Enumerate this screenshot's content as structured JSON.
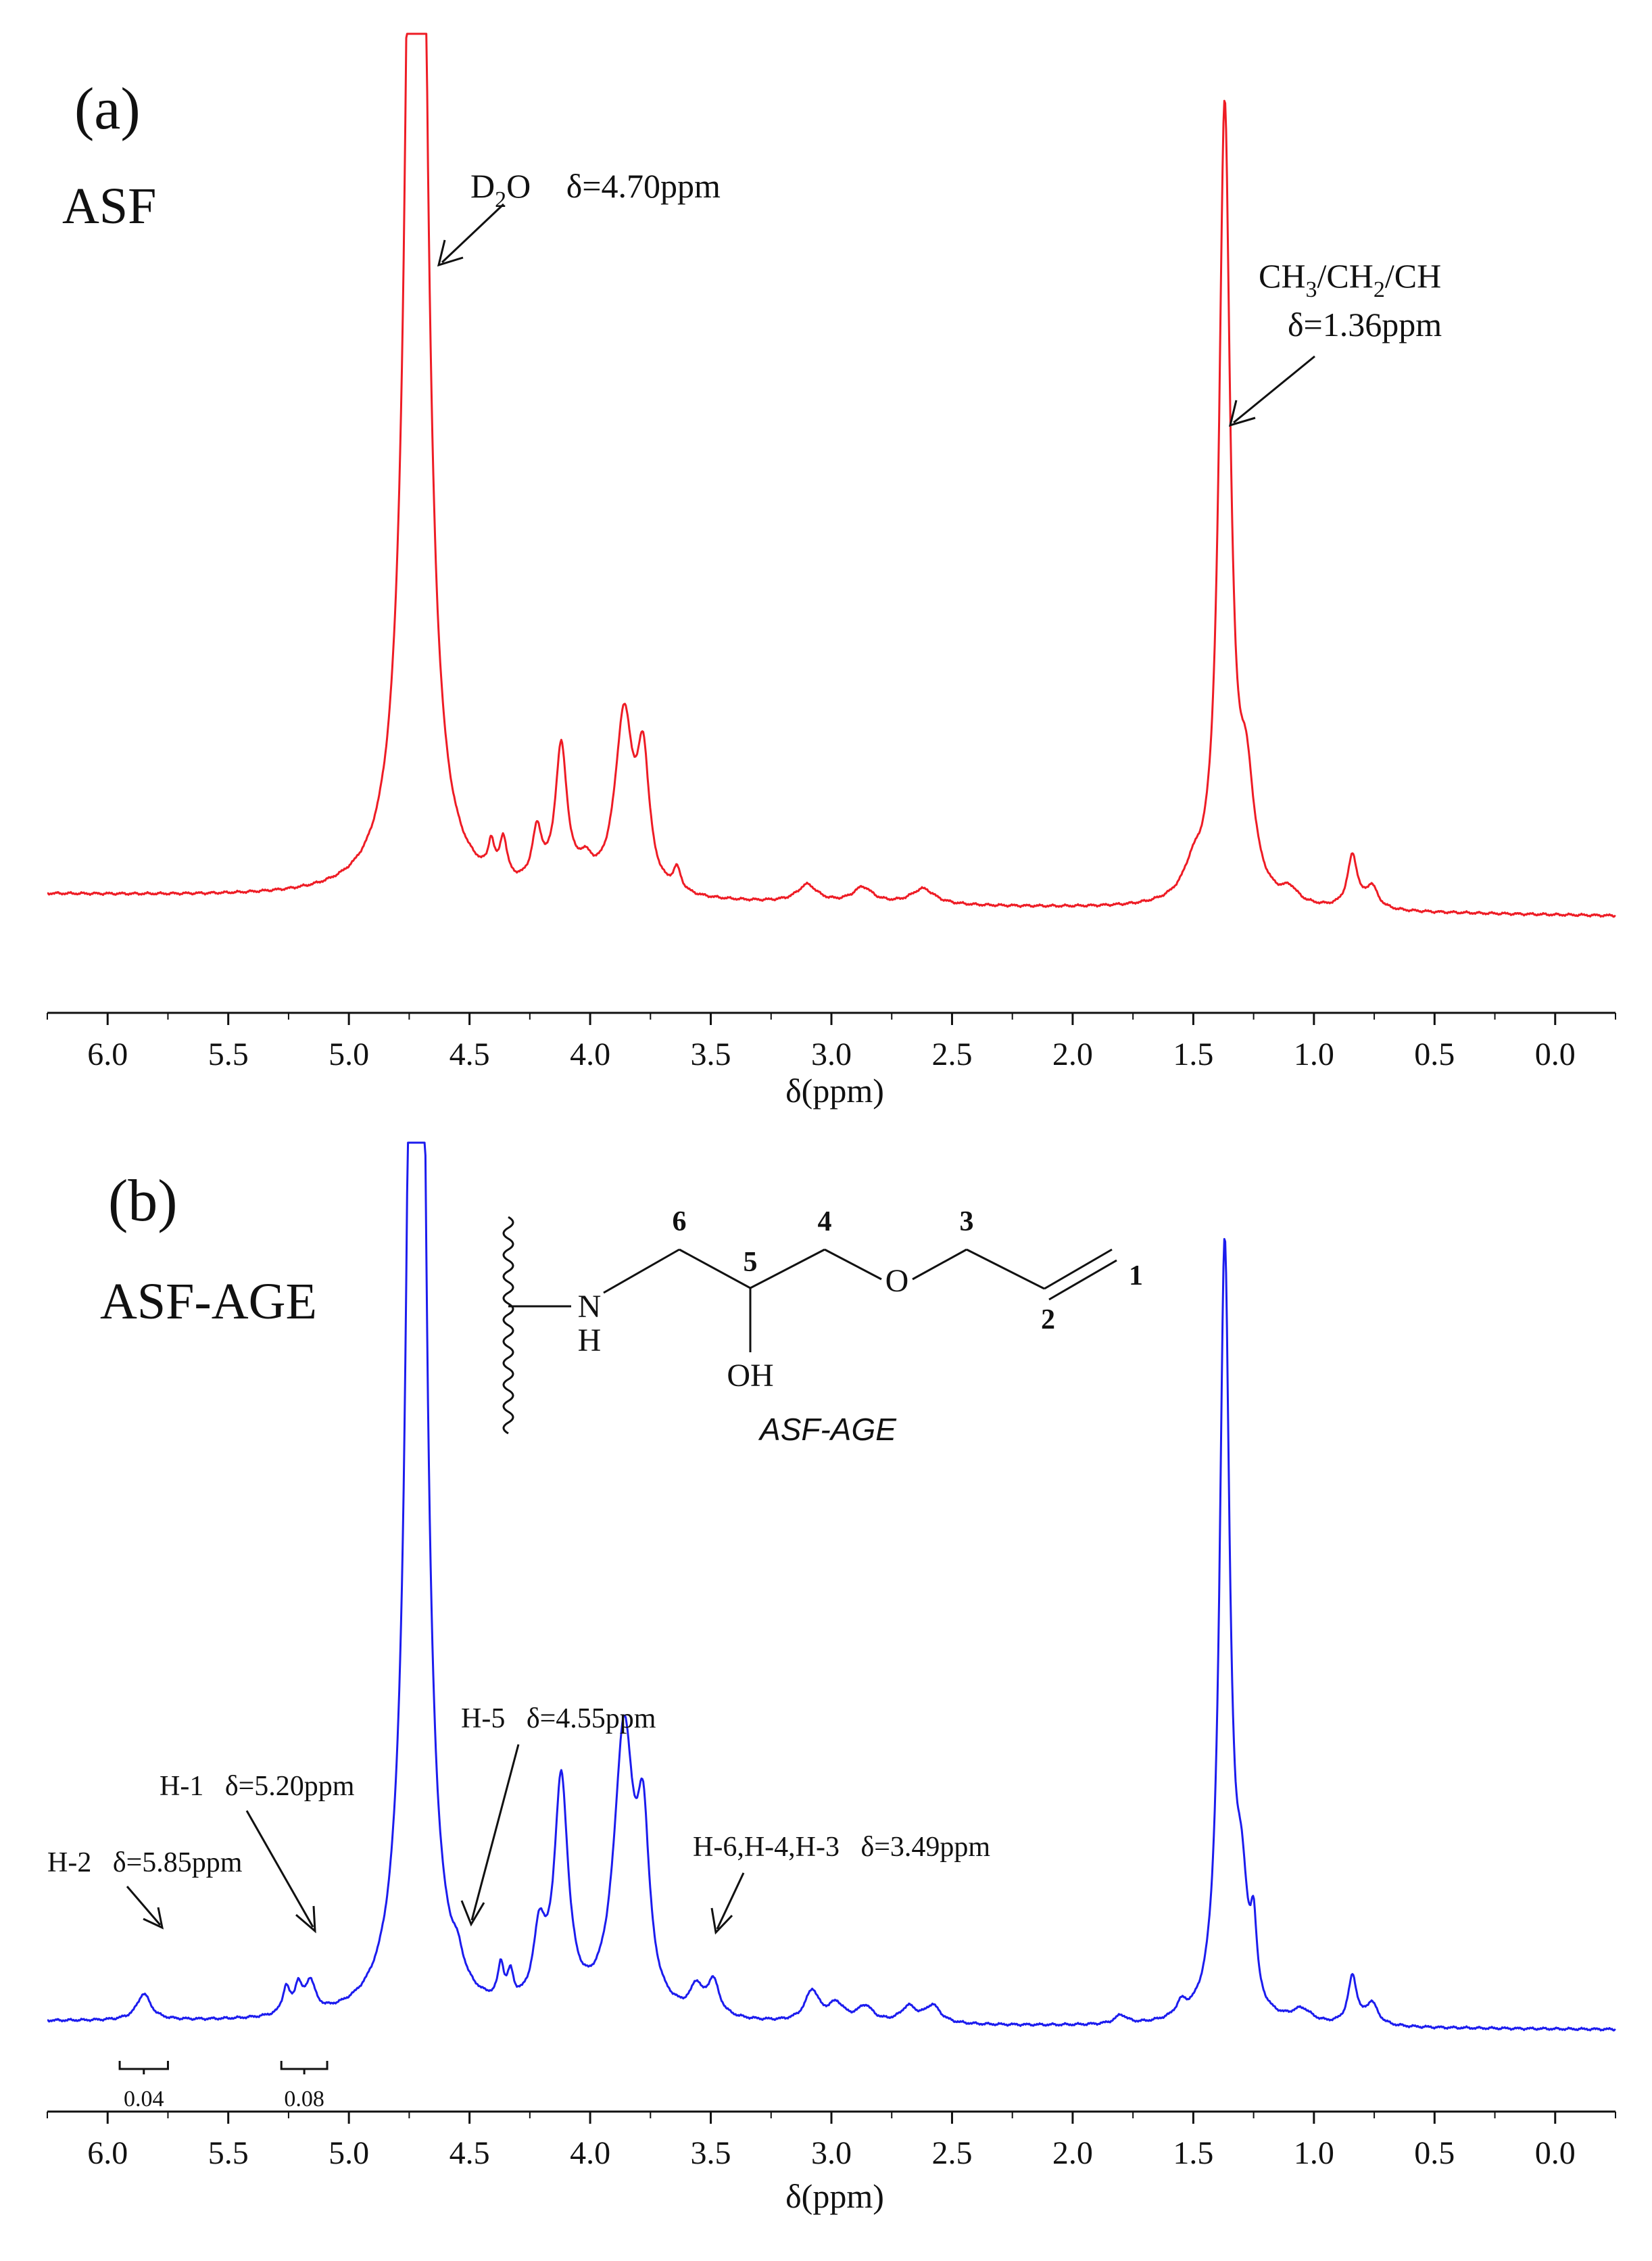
{
  "chart_data": [
    {
      "type": "line",
      "panel_label": "(a)",
      "sample_label": "ASF",
      "xlabel": "δ(ppm)",
      "xlim": [
        6.25,
        -0.25
      ],
      "ylim": [
        0,
        1
      ],
      "xticks": [
        6.0,
        5.5,
        5.0,
        4.5,
        4.0,
        3.5,
        3.0,
        2.5,
        2.0,
        1.5,
        1.0,
        0.5,
        0.0
      ],
      "xtick_labels": [
        "6.0",
        "5.5",
        "5.0",
        "4.5",
        "4.0",
        "3.5",
        "3.0",
        "2.5",
        "2.0",
        "1.5",
        "1.0",
        "0.5",
        "0.0"
      ],
      "color": "#ee1c25",
      "baseline": 0.03,
      "peaks": [
        {
          "x": 4.72,
          "h": 2.4,
          "w": 0.035
        },
        {
          "x": 4.12,
          "h": 0.16,
          "w": 0.03
        },
        {
          "x": 4.02,
          "h": 0.025,
          "w": 0.04
        },
        {
          "x": 4.22,
          "h": 0.06,
          "w": 0.025
        },
        {
          "x": 4.36,
          "h": 0.045,
          "w": 0.018
        },
        {
          "x": 4.41,
          "h": 0.035,
          "w": 0.015
        },
        {
          "x": 3.86,
          "h": 0.2,
          "w": 0.045
        },
        {
          "x": 3.78,
          "h": 0.14,
          "w": 0.03
        },
        {
          "x": 3.64,
          "h": 0.025,
          "w": 0.02
        },
        {
          "x": 3.1,
          "h": 0.02,
          "w": 0.05
        },
        {
          "x": 2.87,
          "h": 0.018,
          "w": 0.05
        },
        {
          "x": 2.62,
          "h": 0.018,
          "w": 0.06
        },
        {
          "x": 1.5,
          "h": 0.03,
          "w": 0.05
        },
        {
          "x": 1.37,
          "h": 0.9,
          "w": 0.028
        },
        {
          "x": 1.28,
          "h": 0.12,
          "w": 0.04
        },
        {
          "x": 1.1,
          "h": 0.015,
          "w": 0.04
        },
        {
          "x": 0.84,
          "h": 0.06,
          "w": 0.025
        },
        {
          "x": 0.76,
          "h": 0.025,
          "w": 0.03
        }
      ],
      "annotations": [
        {
          "label": "D₂O   δ=4.70ppm",
          "x": 4.7
        },
        {
          "label_line1": "CH₃/CH₂/CH",
          "label_line2": "δ=1.36ppm",
          "x": 1.36
        }
      ]
    },
    {
      "type": "line",
      "panel_label": "(b)",
      "sample_label": "ASF-AGE",
      "xlabel": "δ(ppm)",
      "xlim": [
        6.25,
        -0.25
      ],
      "ylim": [
        0,
        1
      ],
      "xticks": [
        6.0,
        5.5,
        5.0,
        4.5,
        4.0,
        3.5,
        3.0,
        2.5,
        2.0,
        1.5,
        1.0,
        0.5,
        0.0
      ],
      "xtick_labels": [
        "6.0",
        "5.5",
        "5.0",
        "4.5",
        "4.0",
        "3.5",
        "3.0",
        "2.5",
        "2.0",
        "1.5",
        "1.0",
        "0.5",
        "0.0"
      ],
      "color": "#1c1cee",
      "baseline": 0.03,
      "peaks": [
        {
          "x": 5.85,
          "h": 0.03,
          "w": 0.035
        },
        {
          "x": 5.26,
          "h": 0.03,
          "w": 0.018
        },
        {
          "x": 5.21,
          "h": 0.03,
          "w": 0.018
        },
        {
          "x": 5.16,
          "h": 0.035,
          "w": 0.025
        },
        {
          "x": 4.72,
          "h": 2.5,
          "w": 0.03
        },
        {
          "x": 4.55,
          "h": 0.025,
          "w": 0.03
        },
        {
          "x": 4.37,
          "h": 0.04,
          "w": 0.015
        },
        {
          "x": 4.33,
          "h": 0.03,
          "w": 0.015
        },
        {
          "x": 4.21,
          "h": 0.08,
          "w": 0.03
        },
        {
          "x": 4.12,
          "h": 0.26,
          "w": 0.035
        },
        {
          "x": 3.86,
          "h": 0.32,
          "w": 0.05
        },
        {
          "x": 3.78,
          "h": 0.18,
          "w": 0.03
        },
        {
          "x": 3.56,
          "h": 0.03,
          "w": 0.03
        },
        {
          "x": 3.49,
          "h": 0.04,
          "w": 0.03
        },
        {
          "x": 3.08,
          "h": 0.035,
          "w": 0.035
        },
        {
          "x": 2.98,
          "h": 0.02,
          "w": 0.04
        },
        {
          "x": 2.86,
          "h": 0.018,
          "w": 0.04
        },
        {
          "x": 2.68,
          "h": 0.018,
          "w": 0.04
        },
        {
          "x": 2.58,
          "h": 0.02,
          "w": 0.04
        },
        {
          "x": 1.8,
          "h": 0.01,
          "w": 0.03
        },
        {
          "x": 1.55,
          "h": 0.015,
          "w": 0.025
        },
        {
          "x": 1.37,
          "h": 0.88,
          "w": 0.025
        },
        {
          "x": 1.3,
          "h": 0.12,
          "w": 0.03
        },
        {
          "x": 1.25,
          "h": 0.08,
          "w": 0.015
        },
        {
          "x": 1.05,
          "h": 0.015,
          "w": 0.05
        },
        {
          "x": 0.84,
          "h": 0.055,
          "w": 0.022
        },
        {
          "x": 0.76,
          "h": 0.025,
          "w": 0.03
        }
      ],
      "annotations": [
        {
          "label": "H-2   δ=5.85ppm",
          "x": 5.85
        },
        {
          "label": "H-1   δ=5.20ppm",
          "x": 5.2
        },
        {
          "label": "H-5   δ=4.55ppm",
          "x": 4.55
        },
        {
          "label": "H-6,H-4,H-3   δ=3.49ppm",
          "x": 3.49
        }
      ],
      "integrals": [
        {
          "x_from": 5.95,
          "x_to": 5.75,
          "value": "0.04"
        },
        {
          "x_from": 5.28,
          "x_to": 5.09,
          "value": "0.08"
        }
      ],
      "structure": {
        "name": "ASF-AGE",
        "atoms": {
          "n": "N",
          "nh": "H",
          "o": "O",
          "oh": "OH"
        },
        "numbers": [
          "1",
          "2",
          "3",
          "4",
          "5",
          "6"
        ]
      }
    }
  ]
}
